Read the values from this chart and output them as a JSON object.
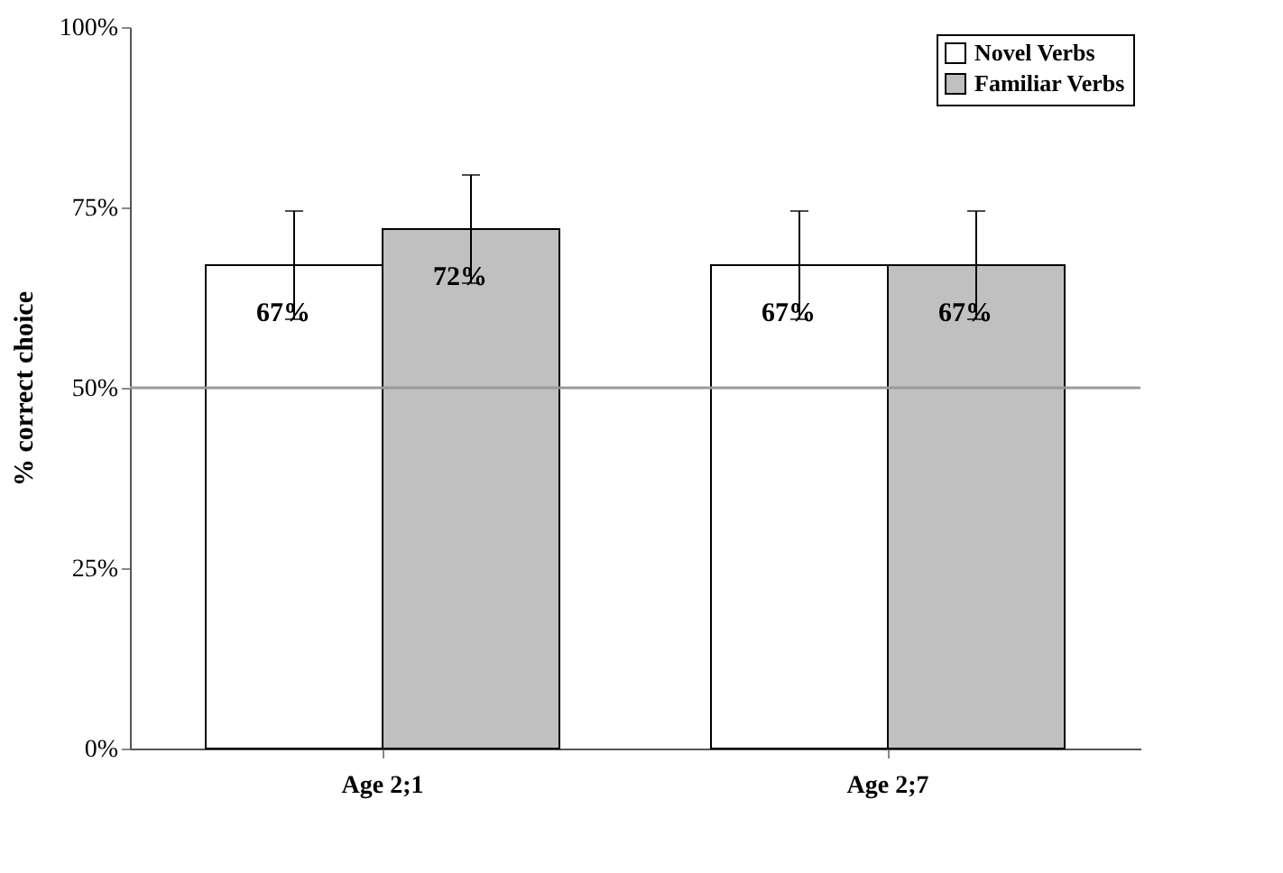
{
  "chart_data": {
    "type": "bar",
    "ylabel": "% correct choice",
    "categories": [
      "Age 2;1",
      "Age 2;7"
    ],
    "series": [
      {
        "name": "Novel Verbs",
        "color": "#ffffff",
        "values": [
          67,
          67
        ],
        "errors": [
          7.5,
          7.5
        ],
        "value_labels": [
          "67%",
          "67%"
        ]
      },
      {
        "name": "Familiar Verbs",
        "color": "#c0c0c0",
        "values": [
          72,
          67
        ],
        "errors": [
          7.5,
          7.5
        ],
        "value_labels": [
          "72%",
          "67%"
        ]
      }
    ],
    "ylim": [
      0,
      100
    ],
    "yticks": [
      {
        "value": 0,
        "label": "0%"
      },
      {
        "value": 25,
        "label": "25%"
      },
      {
        "value": 50,
        "label": "50%"
      },
      {
        "value": 75,
        "label": "75%"
      },
      {
        "value": 100,
        "label": "100%"
      }
    ],
    "ref_lines": [
      {
        "axis": "y",
        "value": 50,
        "color": "#999999"
      }
    ],
    "grid": false,
    "legend": "top right"
  }
}
